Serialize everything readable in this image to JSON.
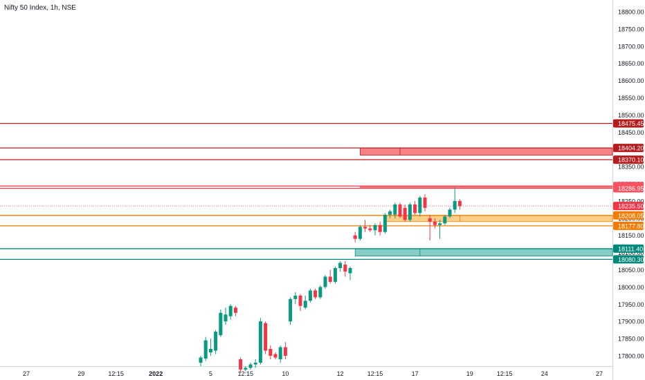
{
  "title": "Nifty 50 Index, 1h, NSE",
  "colors": {
    "up": "#089981",
    "down": "#f23645",
    "axis_text": "#131722",
    "resistance_line": "#b71c1c",
    "resistance_zone": "#f77c80",
    "support_orange": "#f57c00",
    "support_zone_orange": "#ffcc80",
    "support_green": "#00897b",
    "support_zone_green": "#80cbc4"
  },
  "chart_data": {
    "type": "candlestick",
    "title": "Nifty 50 Index, 1h, NSE",
    "ylim": [
      17770,
      18840
    ],
    "y_ticks": [
      17800,
      17850,
      17900,
      17950,
      18000,
      18050,
      18100,
      18150,
      18200,
      18250,
      18300,
      18350,
      18400,
      18450,
      18500,
      18550,
      18600,
      18650,
      18700,
      18750,
      18800
    ],
    "y_tick_labels": [
      "17800.00",
      "17850.00",
      "17900.00",
      "17950.00",
      "18000.00",
      "18050.00",
      "18100.00",
      "18150.00",
      "18200.00",
      "18250.00",
      "18300.00",
      "18350.00",
      "18400.00",
      "18450.00",
      "18500.00",
      "18550.00",
      "18600.00",
      "18650.00",
      "18700.00",
      "18750.00",
      "18800.00"
    ],
    "x_ticks": [
      {
        "label": "27",
        "slot": 0
      },
      {
        "label": "29",
        "slot": 11
      },
      {
        "label": "12:15",
        "slot": 18
      },
      {
        "label": "2022",
        "slot": 26
      },
      {
        "label": "5",
        "slot": 37
      },
      {
        "label": "12:15",
        "slot": 44
      },
      {
        "label": "10",
        "slot": 52
      },
      {
        "label": "12",
        "slot": 63
      },
      {
        "label": "12:15",
        "slot": 70
      },
      {
        "label": "17",
        "slot": 78
      },
      {
        "label": "19",
        "slot": 89
      },
      {
        "label": "12:15",
        "slot": 96
      },
      {
        "label": "24",
        "slot": 104
      },
      {
        "label": "27",
        "slot": 115
      }
    ],
    "candles": [
      {
        "o": 17780,
        "h": 17800,
        "l": 17770,
        "c": 17795
      },
      {
        "o": 17792,
        "h": 17855,
        "l": 17785,
        "c": 17845
      },
      {
        "o": 17810,
        "h": 17850,
        "l": 17800,
        "c": 17820
      },
      {
        "o": 17815,
        "h": 17875,
        "l": 17805,
        "c": 17870
      },
      {
        "o": 17860,
        "h": 17935,
        "l": 17855,
        "c": 17925
      },
      {
        "o": 17900,
        "h": 17940,
        "l": 17890,
        "c": 17920
      },
      {
        "o": 17915,
        "h": 17950,
        "l": 17905,
        "c": 17945
      },
      {
        "o": 17940,
        "h": 17945,
        "l": 17915,
        "c": 17925
      },
      {
        "o": 17790,
        "h": 17795,
        "l": 17750,
        "c": 17760
      },
      {
        "o": 17760,
        "h": 17770,
        "l": 17755,
        "c": 17765
      },
      {
        "o": 17765,
        "h": 17780,
        "l": 17760,
        "c": 17775
      },
      {
        "o": 17775,
        "h": 17790,
        "l": 17765,
        "c": 17780
      },
      {
        "o": 17780,
        "h": 17910,
        "l": 17775,
        "c": 17900
      },
      {
        "o": 17895,
        "h": 17900,
        "l": 17805,
        "c": 17815
      },
      {
        "o": 17820,
        "h": 17830,
        "l": 17790,
        "c": 17800
      },
      {
        "o": 17805,
        "h": 17810,
        "l": 17790,
        "c": 17795
      },
      {
        "o": 17790,
        "h": 17830,
        "l": 17780,
        "c": 17825
      },
      {
        "o": 17825,
        "h": 17840,
        "l": 17790,
        "c": 17800
      },
      {
        "o": 17900,
        "h": 17970,
        "l": 17890,
        "c": 17965
      },
      {
        "o": 17965,
        "h": 17985,
        "l": 17950,
        "c": 17975
      },
      {
        "o": 17975,
        "h": 17980,
        "l": 17930,
        "c": 17945
      },
      {
        "o": 17940,
        "h": 17975,
        "l": 17935,
        "c": 17960
      },
      {
        "o": 17960,
        "h": 17995,
        "l": 17955,
        "c": 17990
      },
      {
        "o": 17990,
        "h": 17995,
        "l": 17965,
        "c": 17970
      },
      {
        "o": 17970,
        "h": 18005,
        "l": 17965,
        "c": 18000
      },
      {
        "o": 18000,
        "h": 18035,
        "l": 17995,
        "c": 18030
      },
      {
        "o": 18030,
        "h": 18050,
        "l": 18010,
        "c": 18015
      },
      {
        "o": 18015,
        "h": 18060,
        "l": 18010,
        "c": 18055
      },
      {
        "o": 18055,
        "h": 18075,
        "l": 18045,
        "c": 18070
      },
      {
        "o": 18065,
        "h": 18075,
        "l": 18030,
        "c": 18045
      },
      {
        "o": 18040,
        "h": 18060,
        "l": 18020,
        "c": 18055
      },
      {
        "o": 18150,
        "h": 18160,
        "l": 18130,
        "c": 18140
      },
      {
        "o": 18140,
        "h": 18180,
        "l": 18135,
        "c": 18175
      },
      {
        "o": 18175,
        "h": 18195,
        "l": 18160,
        "c": 18170
      },
      {
        "o": 18170,
        "h": 18180,
        "l": 18160,
        "c": 18165
      },
      {
        "o": 18165,
        "h": 18185,
        "l": 18150,
        "c": 18180
      },
      {
        "o": 18180,
        "h": 18190,
        "l": 18150,
        "c": 18160
      },
      {
        "o": 18160,
        "h": 18215,
        "l": 18155,
        "c": 18210
      },
      {
        "o": 18210,
        "h": 18225,
        "l": 18200,
        "c": 18220
      },
      {
        "o": 18210,
        "h": 18245,
        "l": 18200,
        "c": 18240
      },
      {
        "o": 18240,
        "h": 18245,
        "l": 18200,
        "c": 18205
      },
      {
        "o": 18230,
        "h": 18240,
        "l": 18190,
        "c": 18195
      },
      {
        "o": 18195,
        "h": 18245,
        "l": 18190,
        "c": 18240
      },
      {
        "o": 18240,
        "h": 18250,
        "l": 18210,
        "c": 18215
      },
      {
        "o": 18215,
        "h": 18265,
        "l": 18205,
        "c": 18260
      },
      {
        "o": 18260,
        "h": 18270,
        "l": 18220,
        "c": 18230
      },
      {
        "o": 18200,
        "h": 18210,
        "l": 18135,
        "c": 18190
      },
      {
        "o": 18190,
        "h": 18200,
        "l": 18170,
        "c": 18180
      },
      {
        "o": 18180,
        "h": 18195,
        "l": 18140,
        "c": 18185
      },
      {
        "o": 18185,
        "h": 18210,
        "l": 18180,
        "c": 18205
      },
      {
        "o": 18205,
        "h": 18230,
        "l": 18200,
        "c": 18225
      },
      {
        "o": 18225,
        "h": 18290,
        "l": 18215,
        "c": 18250
      },
      {
        "o": 18250,
        "h": 18255,
        "l": 18225,
        "c": 18235
      }
    ],
    "horizontal_lines": [
      {
        "value": 18475.45,
        "label": "18475.45",
        "kind": "resistance"
      },
      {
        "value": 18404.2,
        "label": "18404.20",
        "kind": "resistance"
      },
      {
        "value": 18370.1,
        "label": "18370.10",
        "kind": "resistance"
      },
      {
        "value": 18293.4,
        "label": "18293.40",
        "kind": "resistance-light"
      },
      {
        "value": 18286.95,
        "label": "18286.95",
        "kind": "resistance-light"
      },
      {
        "value": 18208.05,
        "label": "18208.05",
        "kind": "support-orange"
      },
      {
        "value": 18177.8,
        "label": "18177.80",
        "kind": "support-orange"
      },
      {
        "value": 18111.4,
        "label": "18111.40",
        "kind": "support-green"
      },
      {
        "value": 18080.3,
        "label": "18080.30",
        "kind": "support-green"
      }
    ],
    "last_price": {
      "value": 18235.5,
      "label": "18235.50"
    },
    "zones": [
      {
        "from_slot": 67,
        "to_slot": 118,
        "top": 18404.2,
        "bottom": 18383.0,
        "kind": "resistance",
        "divider_slot": 75
      },
      {
        "from_slot": 67,
        "to_slot": 118,
        "top": 18293.4,
        "bottom": 18286.95,
        "kind": "resistance-light"
      },
      {
        "from_slot": 72,
        "to_slot": 118,
        "top": 18208.05,
        "bottom": 18190.0,
        "kind": "support-orange",
        "divider_slot": 87
      },
      {
        "from_slot": 66,
        "to_slot": 118,
        "top": 18111.4,
        "bottom": 18090.0,
        "kind": "support-green",
        "divider_slot": 79
      }
    ]
  }
}
